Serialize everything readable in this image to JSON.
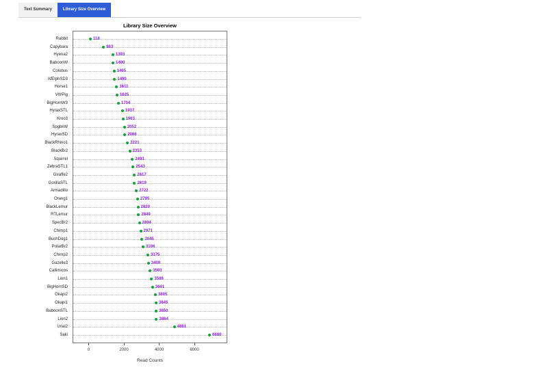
{
  "tabs": [
    {
      "label": "Text Summary",
      "active": false
    },
    {
      "label": "Library Size Overview",
      "active": true
    }
  ],
  "colors": {
    "active_tab": "#2e5bd6",
    "point": "#12a33a",
    "value_label": "#8a1ee6"
  },
  "chart_data": {
    "type": "scatter",
    "subtype": "dot plot (Cleveland)",
    "title": "Library Size Overview",
    "xlabel": "Read Counts",
    "ylabel": "",
    "xlim": [
      -900,
      7800
    ],
    "xticks": [
      0,
      2000,
      4000,
      6000
    ],
    "grid": "horizontal dotted lines per category",
    "legend": null,
    "categories": [
      "Rabbit",
      "Capybara",
      "Hyena2",
      "BaboonW",
      "Colobus",
      "AfElphSD3",
      "Horse1",
      "VWPig",
      "BigHornW3",
      "HyraxSTL",
      "Kroo3",
      "SpgbkW",
      "HyraxSD",
      "BlackRhino1",
      "BlackBr2",
      "Squirrel",
      "ZebraSTL1",
      "Giraffe2",
      "GorillaSTL",
      "Armadillo",
      "Orang1",
      "BlackLemur",
      "RTLemur",
      "SpecBr2",
      "Chimp1",
      "BushDog1",
      "PolarBr2",
      "Chimp2",
      "Gazelle3",
      "Callimicos",
      "Lion1",
      "BigHornSD",
      "Okapi2",
      "Okapi1",
      "BaboonSTL",
      "Lion2",
      "Urial2",
      "Saki"
    ],
    "values": [
      118,
      863,
      1393,
      1400,
      1465,
      1490,
      1611,
      1625,
      1704,
      1937,
      1963,
      2052,
      2066,
      2221,
      2353,
      2493,
      2543,
      2617,
      2619,
      2722,
      2795,
      2820,
      2849,
      2894,
      2971,
      3045,
      3106,
      3375,
      3409,
      3503,
      3589,
      3641,
      3805,
      3845,
      3850,
      3864,
      4881,
      6880
    ]
  }
}
